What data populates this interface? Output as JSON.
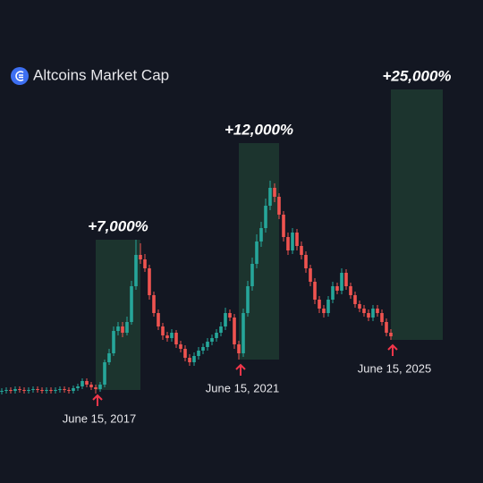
{
  "chart_data": {
    "type": "candlestick",
    "title": "Altcoins Market Cap",
    "ylim": [
      0,
      540
    ],
    "up_color": "#26a69a",
    "down_color": "#ef5350",
    "box_color": "#1f3a30",
    "arrow_color": "#f2364a",
    "open": [
      102,
      103,
      104,
      103,
      105,
      104,
      103,
      104,
      105,
      104,
      103,
      104,
      103,
      104,
      105,
      104,
      103,
      106,
      108,
      114,
      110,
      107,
      105,
      110,
      135,
      145,
      170,
      175,
      168,
      180,
      220,
      255,
      250,
      240,
      210,
      190,
      175,
      165,
      162,
      168,
      155,
      150,
      140,
      135,
      142,
      148,
      152,
      158,
      162,
      168,
      175,
      190,
      185,
      155,
      145,
      190,
      220,
      245,
      270,
      285,
      310,
      330,
      320,
      300,
      275,
      260,
      280,
      265,
      255,
      240,
      225,
      205,
      195,
      190,
      205,
      220,
      215,
      235,
      220,
      210,
      200,
      195,
      190,
      185,
      195,
      190,
      180,
      168
    ],
    "high": [
      106,
      107,
      107,
      108,
      108,
      107,
      107,
      108,
      108,
      107,
      107,
      107,
      107,
      108,
      108,
      107,
      109,
      111,
      117,
      117,
      113,
      110,
      113,
      138,
      150,
      175,
      180,
      180,
      186,
      226,
      272,
      268,
      256,
      244,
      214,
      194,
      179,
      169,
      172,
      171,
      159,
      154,
      144,
      146,
      152,
      156,
      162,
      166,
      172,
      180,
      196,
      194,
      189,
      159,
      195,
      226,
      252,
      278,
      292,
      318,
      338,
      335,
      324,
      304,
      280,
      285,
      284,
      270,
      259,
      244,
      229,
      209,
      199,
      209,
      225,
      224,
      240,
      239,
      224,
      214,
      204,
      199,
      194,
      199,
      199,
      194,
      184,
      172
    ],
    "low": [
      99,
      100,
      100,
      100,
      101,
      100,
      100,
      101,
      101,
      100,
      100,
      100,
      100,
      101,
      101,
      100,
      100,
      103,
      105,
      107,
      104,
      100,
      102,
      107,
      132,
      142,
      165,
      163,
      165,
      177,
      216,
      245,
      236,
      205,
      186,
      171,
      160,
      158,
      158,
      151,
      146,
      136,
      131,
      131,
      138,
      144,
      148,
      154,
      158,
      164,
      171,
      181,
      150,
      138,
      141,
      186,
      215,
      240,
      264,
      280,
      305,
      314,
      295,
      270,
      255,
      256,
      260,
      250,
      235,
      220,
      200,
      190,
      185,
      186,
      201,
      211,
      211,
      216,
      206,
      196,
      191,
      186,
      181,
      181,
      186,
      176,
      164,
      160
    ],
    "close": [
      103,
      104,
      103,
      105,
      104,
      103,
      104,
      105,
      104,
      103,
      104,
      103,
      104,
      105,
      104,
      103,
      106,
      108,
      114,
      110,
      107,
      105,
      110,
      135,
      145,
      170,
      175,
      168,
      180,
      220,
      255,
      250,
      240,
      210,
      190,
      175,
      165,
      162,
      168,
      155,
      150,
      140,
      135,
      142,
      148,
      152,
      158,
      162,
      168,
      175,
      190,
      185,
      155,
      145,
      190,
      220,
      245,
      270,
      285,
      310,
      330,
      320,
      300,
      275,
      260,
      280,
      265,
      255,
      240,
      225,
      205,
      195,
      190,
      205,
      220,
      215,
      235,
      220,
      210,
      200,
      195,
      190,
      185,
      195,
      190,
      180,
      168,
      164
    ],
    "annotations": [
      {
        "label": "+7,000%",
        "date": "June 15, 2017",
        "start": 21,
        "end": 31,
        "low": 104,
        "high": 272
      },
      {
        "label": "+12,000%",
        "date": "June 15, 2021",
        "start": 53,
        "end": 62,
        "low": 138,
        "high": 380
      },
      {
        "label": "+25,000%",
        "date": "June 15, 2025",
        "start": 87,
        "end": 98.6,
        "low": 160,
        "high": 440
      }
    ]
  }
}
